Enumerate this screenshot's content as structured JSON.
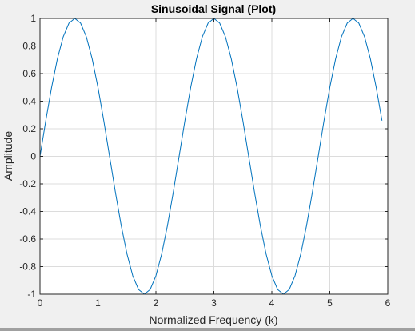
{
  "chart_data": {
    "type": "line",
    "title": "Sinusoidal Signal (Plot)",
    "xlabel": "Normalized Frequency (k)",
    "ylabel": "Amplitude",
    "xlim": [
      0,
      6
    ],
    "ylim": [
      -1,
      1
    ],
    "xticks": [
      "0",
      "1",
      "2",
      "3",
      "4",
      "5",
      "6"
    ],
    "yticks": [
      "1",
      "0.8",
      "0.6",
      "0.4",
      "0.2",
      "0",
      "-0.2",
      "-0.4",
      "-0.6",
      "-0.8",
      "-1"
    ],
    "grid": true,
    "series": [
      {
        "color": "#0072bd",
        "function": "sin(2*pi*x/2.4)",
        "x_start": 0,
        "x_end": 5.9,
        "x_step": 0.1
      }
    ]
  }
}
